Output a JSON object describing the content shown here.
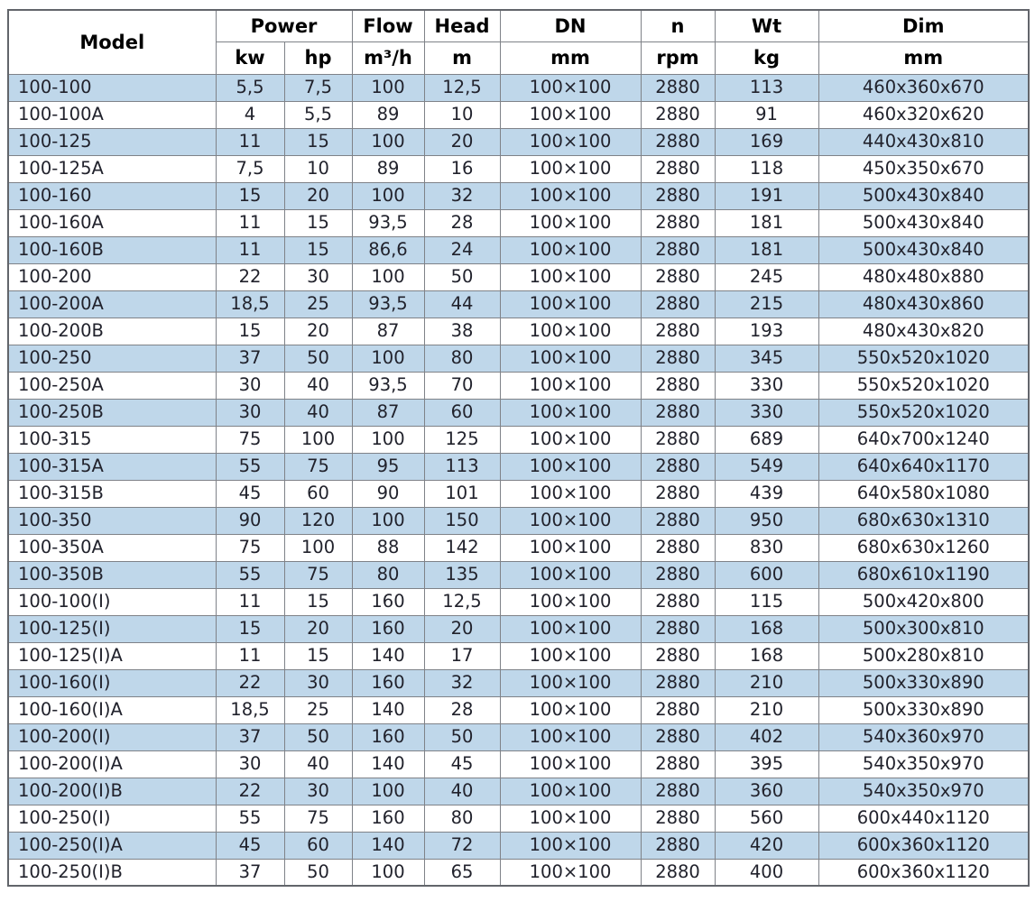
{
  "chart_data": {
    "type": "table",
    "header": {
      "row1": [
        "Model",
        "Power",
        "Flow",
        "Head",
        "DN",
        "n",
        "Wt",
        "Dim"
      ],
      "row2": [
        "kw",
        "hp",
        "m³/h",
        "m",
        "mm",
        "rpm",
        "kg",
        "mm"
      ]
    },
    "field_names": [
      "model",
      "power_kw",
      "power_hp",
      "flow_m3h",
      "head_m",
      "dn_mm",
      "n_rpm",
      "wt_kg",
      "dim_mm"
    ],
    "rows": [
      [
        "100-100",
        "5,5",
        "7,5",
        "100",
        "12,5",
        "100×100",
        "2880",
        "113",
        "460x360x670"
      ],
      [
        "100-100A",
        "4",
        "5,5",
        "89",
        "10",
        "100×100",
        "2880",
        "91",
        "460x320x620"
      ],
      [
        "100-125",
        "11",
        "15",
        "100",
        "20",
        "100×100",
        "2880",
        "169",
        "440x430x810"
      ],
      [
        "100-125A",
        "7,5",
        "10",
        "89",
        "16",
        "100×100",
        "2880",
        "118",
        "450x350x670"
      ],
      [
        "100-160",
        "15",
        "20",
        "100",
        "32",
        "100×100",
        "2880",
        "191",
        "500x430x840"
      ],
      [
        "100-160A",
        "11",
        "15",
        "93,5",
        "28",
        "100×100",
        "2880",
        "181",
        "500x430x840"
      ],
      [
        "100-160B",
        "11",
        "15",
        "86,6",
        "24",
        "100×100",
        "2880",
        "181",
        "500x430x840"
      ],
      [
        "100-200",
        "22",
        "30",
        "100",
        "50",
        "100×100",
        "2880",
        "245",
        "480x480x880"
      ],
      [
        "100-200A",
        "18,5",
        "25",
        "93,5",
        "44",
        "100×100",
        "2880",
        "215",
        "480x430x860"
      ],
      [
        "100-200B",
        "15",
        "20",
        "87",
        "38",
        "100×100",
        "2880",
        "193",
        "480x430x820"
      ],
      [
        "100-250",
        "37",
        "50",
        "100",
        "80",
        "100×100",
        "2880",
        "345",
        "550x520x1020"
      ],
      [
        "100-250A",
        "30",
        "40",
        "93,5",
        "70",
        "100×100",
        "2880",
        "330",
        "550x520x1020"
      ],
      [
        "100-250B",
        "30",
        "40",
        "87",
        "60",
        "100×100",
        "2880",
        "330",
        "550x520x1020"
      ],
      [
        "100-315",
        "75",
        "100",
        "100",
        "125",
        "100×100",
        "2880",
        "689",
        "640x700x1240"
      ],
      [
        "100-315A",
        "55",
        "75",
        "95",
        "113",
        "100×100",
        "2880",
        "549",
        "640x640x1170"
      ],
      [
        "100-315B",
        "45",
        "60",
        "90",
        "101",
        "100×100",
        "2880",
        "439",
        "640x580x1080"
      ],
      [
        "100-350",
        "90",
        "120",
        "100",
        "150",
        "100×100",
        "2880",
        "950",
        "680x630x1310"
      ],
      [
        "100-350A",
        "75",
        "100",
        "88",
        "142",
        "100×100",
        "2880",
        "830",
        "680x630x1260"
      ],
      [
        "100-350B",
        "55",
        "75",
        "80",
        "135",
        "100×100",
        "2880",
        "600",
        "680x610x1190"
      ],
      [
        "100-100(I)",
        "11",
        "15",
        "160",
        "12,5",
        "100×100",
        "2880",
        "115",
        "500x420x800"
      ],
      [
        "100-125(I)",
        "15",
        "20",
        "160",
        "20",
        "100×100",
        "2880",
        "168",
        "500x300x810"
      ],
      [
        "100-125(I)A",
        "11",
        "15",
        "140",
        "17",
        "100×100",
        "2880",
        "168",
        "500x280x810"
      ],
      [
        "100-160(I)",
        "22",
        "30",
        "160",
        "32",
        "100×100",
        "2880",
        "210",
        "500x330x890"
      ],
      [
        "100-160(I)A",
        "18,5",
        "25",
        "140",
        "28",
        "100×100",
        "2880",
        "210",
        "500x330x890"
      ],
      [
        "100-200(I)",
        "37",
        "50",
        "160",
        "50",
        "100×100",
        "2880",
        "402",
        "540x360x970"
      ],
      [
        "100-200(I)A",
        "30",
        "40",
        "140",
        "45",
        "100×100",
        "2880",
        "395",
        "540x350x970"
      ],
      [
        "100-200(I)B",
        "22",
        "30",
        "100",
        "40",
        "100×100",
        "2880",
        "360",
        "540x350x970"
      ],
      [
        "100-250(I)",
        "55",
        "75",
        "160",
        "80",
        "100×100",
        "2880",
        "560",
        "600x440x1120"
      ],
      [
        "100-250(I)A",
        "45",
        "60",
        "140",
        "72",
        "100×100",
        "2880",
        "420",
        "600x360x1120"
      ],
      [
        "100-250(I)B",
        "37",
        "50",
        "100",
        "65",
        "100×100",
        "2880",
        "400",
        "600x360x1120"
      ]
    ]
  },
  "colors": {
    "row_alt": "#bfd7ea",
    "row_plain": "#ffffff",
    "grid": "#7f8288",
    "outer": "#62656b",
    "text": "#21222c",
    "header_text": "#000000",
    "page_bg": "#ffffff"
  }
}
